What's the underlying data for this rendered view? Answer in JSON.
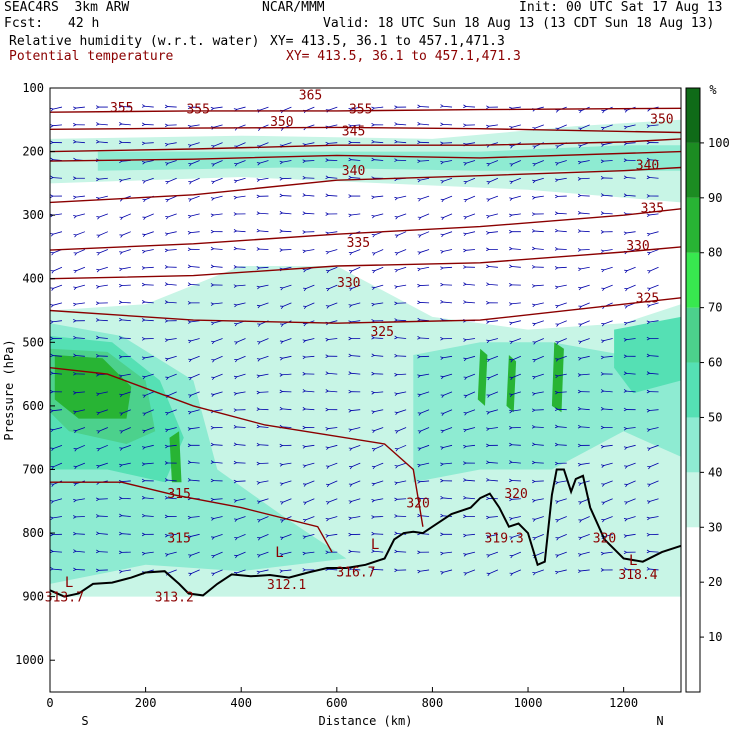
{
  "header": {
    "model": "SEAC4RS  3km ARW",
    "org": "NCAR/MMM",
    "init": "Init: 00 UTC Sat 17 Aug 13",
    "fcst_label": "Fcst:",
    "fcst_value": "42 h",
    "valid": "Valid: 18 UTC Sun 18 Aug 13 (13 CDT Sun 18 Aug 13)",
    "field1_name": "Relative humidity (w.r.t. water)",
    "field1_xy": "XY= 413.5, 36.1 to 457.1,471.3",
    "field2_name": "Potential temperature",
    "field2_xy": "XY= 413.5, 36.1 to 457.1,471.3"
  },
  "colors": {
    "theta": "#8b0000",
    "wind": "#0000aa",
    "terrain": "#000000"
  },
  "chart_data": {
    "type": "cross-section",
    "xlabel": "Distance (km)",
    "ylabel": "Pressure (hPa)",
    "xlim": [
      0,
      1320
    ],
    "ylim": [
      1050,
      100
    ],
    "x_ticks": [
      0,
      200,
      400,
      600,
      800,
      1000,
      1200
    ],
    "y_ticks": [
      100,
      200,
      300,
      400,
      500,
      600,
      700,
      800,
      900,
      1000
    ],
    "endpoints": {
      "left": "S",
      "right": "N"
    },
    "colorbar": {
      "unit": "%",
      "levels": [
        10,
        20,
        30,
        40,
        50,
        60,
        70,
        80,
        90,
        100
      ],
      "colors": [
        "#ffffff",
        "#ffffff",
        "#ffffff",
        "#c8f5e6",
        "#8eebd2",
        "#55e0b4",
        "#4cd18c",
        "#38e84f",
        "#28b434",
        "#1c8c22",
        "#0f6b18"
      ]
    },
    "rh_regions": [
      {
        "rh": 35,
        "pts": [
          [
            0,
            450
          ],
          [
            200,
            440
          ],
          [
            400,
            380
          ],
          [
            600,
            380
          ],
          [
            800,
            460
          ],
          [
            1000,
            480
          ],
          [
            1200,
            470
          ],
          [
            1320,
            440
          ],
          [
            1320,
            900
          ],
          [
            0,
            900
          ]
        ]
      },
      {
        "rh": 35,
        "pts": [
          [
            0,
            180
          ],
          [
            400,
            175
          ],
          [
            800,
            180
          ],
          [
            1100,
            160
          ],
          [
            1320,
            150
          ],
          [
            1320,
            280
          ],
          [
            1000,
            260
          ],
          [
            700,
            250
          ],
          [
            400,
            240
          ],
          [
            0,
            250
          ]
        ]
      },
      {
        "rh": 45,
        "pts": [
          [
            0,
            470
          ],
          [
            150,
            490
          ],
          [
            300,
            560
          ],
          [
            350,
            700
          ],
          [
            500,
            780
          ],
          [
            620,
            840
          ],
          [
            400,
            860
          ],
          [
            200,
            850
          ],
          [
            0,
            880
          ]
        ]
      },
      {
        "rh": 45,
        "pts": [
          [
            760,
            520
          ],
          [
            900,
            500
          ],
          [
            1050,
            500
          ],
          [
            1200,
            520
          ],
          [
            1320,
            500
          ],
          [
            1320,
            680
          ],
          [
            1200,
            640
          ],
          [
            1050,
            700
          ],
          [
            900,
            700
          ],
          [
            760,
            720
          ]
        ]
      },
      {
        "rh": 45,
        "pts": [
          [
            100,
            200
          ],
          [
            500,
            200
          ],
          [
            900,
            200
          ],
          [
            1200,
            190
          ],
          [
            1320,
            190
          ],
          [
            1320,
            230
          ],
          [
            900,
            230
          ],
          [
            500,
            225
          ],
          [
            100,
            230
          ]
        ]
      },
      {
        "rh": 55,
        "pts": [
          [
            0,
            490
          ],
          [
            130,
            500
          ],
          [
            230,
            560
          ],
          [
            280,
            650
          ],
          [
            240,
            720
          ],
          [
            120,
            700
          ],
          [
            0,
            700
          ]
        ]
      },
      {
        "rh": 55,
        "pts": [
          [
            1180,
            480
          ],
          [
            1320,
            460
          ],
          [
            1320,
            560
          ],
          [
            1220,
            580
          ],
          [
            1180,
            540
          ]
        ]
      },
      {
        "rh": 65,
        "pts": [
          [
            0,
            510
          ],
          [
            120,
            515
          ],
          [
            200,
            560
          ],
          [
            220,
            640
          ],
          [
            160,
            660
          ],
          [
            40,
            640
          ],
          [
            0,
            610
          ]
        ]
      },
      {
        "rh": 85,
        "pts": [
          [
            10,
            520
          ],
          [
            110,
            525
          ],
          [
            170,
            570
          ],
          [
            160,
            620
          ],
          [
            60,
            620
          ],
          [
            10,
            590
          ]
        ]
      },
      {
        "rh": 85,
        "pts": [
          [
            900,
            510
          ],
          [
            915,
            520
          ],
          [
            910,
            600
          ],
          [
            895,
            590
          ]
        ]
      },
      {
        "rh": 85,
        "pts": [
          [
            960,
            520
          ],
          [
            975,
            530
          ],
          [
            970,
            610
          ],
          [
            955,
            600
          ]
        ]
      },
      {
        "rh": 85,
        "pts": [
          [
            1055,
            500
          ],
          [
            1075,
            510
          ],
          [
            1070,
            610
          ],
          [
            1050,
            600
          ]
        ]
      },
      {
        "rh": 85,
        "pts": [
          [
            250,
            650
          ],
          [
            270,
            640
          ],
          [
            275,
            720
          ],
          [
            255,
            720
          ]
        ]
      }
    ],
    "theta_contours": [
      {
        "value": 365,
        "pts": [
          [
            0,
            138
          ],
          [
            300,
            136
          ],
          [
            600,
            136
          ],
          [
            900,
            134
          ],
          [
            1320,
            132
          ]
        ]
      },
      {
        "value": 355,
        "pts": [
          [
            0,
            165
          ],
          [
            300,
            163
          ],
          [
            600,
            162
          ],
          [
            900,
            164
          ],
          [
            1320,
            170
          ]
        ]
      },
      {
        "value": 350,
        "pts": [
          [
            0,
            200
          ],
          [
            300,
            196
          ],
          [
            600,
            190
          ],
          [
            900,
            190
          ],
          [
            1200,
            185
          ],
          [
            1320,
            180
          ]
        ]
      },
      {
        "value": 345,
        "pts": [
          [
            0,
            215
          ],
          [
            300,
            212
          ],
          [
            600,
            206
          ],
          [
            900,
            210
          ],
          [
            1320,
            200
          ]
        ]
      },
      {
        "value": 340,
        "pts": [
          [
            0,
            280
          ],
          [
            300,
            268
          ],
          [
            600,
            245
          ],
          [
            900,
            238
          ],
          [
            1200,
            230
          ],
          [
            1320,
            225
          ]
        ]
      },
      {
        "value": 335,
        "pts": [
          [
            0,
            355
          ],
          [
            300,
            345
          ],
          [
            600,
            330
          ],
          [
            900,
            318
          ],
          [
            1200,
            300
          ],
          [
            1320,
            290
          ]
        ]
      },
      {
        "value": 330,
        "pts": [
          [
            0,
            400
          ],
          [
            300,
            395
          ],
          [
            600,
            380
          ],
          [
            900,
            375
          ],
          [
            1200,
            358
          ],
          [
            1320,
            350
          ]
        ]
      },
      {
        "value": 325,
        "pts": [
          [
            0,
            450
          ],
          [
            300,
            465
          ],
          [
            600,
            470
          ],
          [
            900,
            465
          ],
          [
            1200,
            440
          ],
          [
            1320,
            430
          ]
        ]
      },
      {
        "value": 320,
        "pts": [
          [
            0,
            540
          ],
          [
            120,
            550
          ],
          [
            300,
            600
          ],
          [
            450,
            630
          ],
          [
            700,
            660
          ],
          [
            760,
            700
          ],
          [
            780,
            790
          ]
        ]
      },
      {
        "value": 315,
        "pts": [
          [
            0,
            720
          ],
          [
            150,
            720
          ],
          [
            260,
            740
          ],
          [
            400,
            760
          ],
          [
            560,
            790
          ],
          [
            590,
            830
          ]
        ]
      }
    ],
    "theta_labels": [
      {
        "text": "365",
        "x": 545,
        "y": 118
      },
      {
        "text": "355",
        "x": 150,
        "y": 138
      },
      {
        "text": "355",
        "x": 310,
        "y": 140
      },
      {
        "text": "355",
        "x": 650,
        "y": 140
      },
      {
        "text": "350",
        "x": 485,
        "y": 160
      },
      {
        "text": "350",
        "x": 1280,
        "y": 156
      },
      {
        "text": "345",
        "x": 635,
        "y": 175
      },
      {
        "text": "340",
        "x": 635,
        "y": 237
      },
      {
        "text": "340",
        "x": 1250,
        "y": 228
      },
      {
        "text": "335",
        "x": 645,
        "y": 350
      },
      {
        "text": "335",
        "x": 1260,
        "y": 296
      },
      {
        "text": "330",
        "x": 625,
        "y": 413
      },
      {
        "text": "330",
        "x": 1230,
        "y": 355
      },
      {
        "text": "325",
        "x": 695,
        "y": 490
      },
      {
        "text": "325",
        "x": 1250,
        "y": 437
      },
      {
        "text": "320",
        "x": 770,
        "y": 760
      },
      {
        "text": "320",
        "x": 975,
        "y": 745
      },
      {
        "text": "320",
        "x": 1160,
        "y": 815
      },
      {
        "text": "315",
        "x": 270,
        "y": 745
      },
      {
        "text": "315",
        "x": 270,
        "y": 815
      }
    ],
    "lows": [
      {
        "text": "L",
        "x": 40,
        "y": 885
      },
      {
        "text": "L",
        "x": 480,
        "y": 838
      },
      {
        "text": "L",
        "x": 680,
        "y": 825
      },
      {
        "text": "L",
        "x": 1220,
        "y": 850
      }
    ],
    "low_values": [
      {
        "text": "313.7",
        "x": 30,
        "y": 908
      },
      {
        "text": "313.2",
        "x": 260,
        "y": 908
      },
      {
        "text": "312.1",
        "x": 495,
        "y": 888
      },
      {
        "text": "316.7",
        "x": 640,
        "y": 868
      },
      {
        "text": "319.3",
        "x": 950,
        "y": 815
      },
      {
        "text": "318.4",
        "x": 1230,
        "y": 872
      }
    ],
    "terrain": [
      [
        0,
        890
      ],
      [
        30,
        900
      ],
      [
        60,
        895
      ],
      [
        90,
        880
      ],
      [
        130,
        878
      ],
      [
        170,
        870
      ],
      [
        200,
        862
      ],
      [
        240,
        860
      ],
      [
        270,
        880
      ],
      [
        290,
        895
      ],
      [
        320,
        898
      ],
      [
        350,
        880
      ],
      [
        380,
        865
      ],
      [
        420,
        868
      ],
      [
        460,
        866
      ],
      [
        500,
        870
      ],
      [
        540,
        862
      ],
      [
        580,
        855
      ],
      [
        620,
        855
      ],
      [
        660,
        850
      ],
      [
        700,
        840
      ],
      [
        720,
        810
      ],
      [
        740,
        800
      ],
      [
        760,
        798
      ],
      [
        780,
        800
      ],
      [
        800,
        790
      ],
      [
        840,
        770
      ],
      [
        880,
        760
      ],
      [
        900,
        745
      ],
      [
        920,
        738
      ],
      [
        940,
        760
      ],
      [
        960,
        790
      ],
      [
        980,
        785
      ],
      [
        1000,
        800
      ],
      [
        1020,
        850
      ],
      [
        1035,
        845
      ],
      [
        1050,
        740
      ],
      [
        1060,
        700
      ],
      [
        1075,
        700
      ],
      [
        1090,
        735
      ],
      [
        1100,
        715
      ],
      [
        1115,
        710
      ],
      [
        1130,
        760
      ],
      [
        1160,
        810
      ],
      [
        1200,
        840
      ],
      [
        1240,
        845
      ],
      [
        1280,
        830
      ],
      [
        1320,
        820
      ]
    ]
  }
}
